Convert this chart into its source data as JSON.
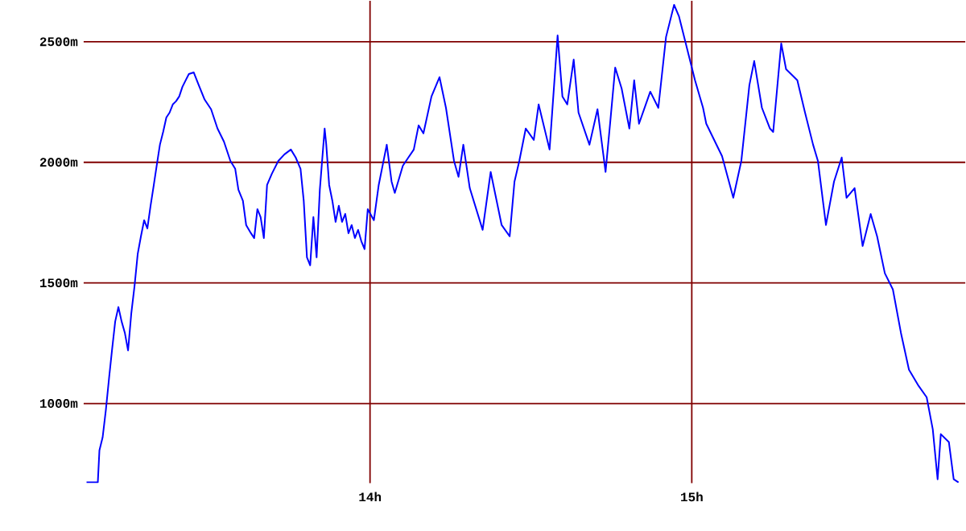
{
  "chart_data": {
    "type": "line",
    "x": [
      13.119,
      13.154,
      13.159,
      13.169,
      13.179,
      13.189,
      13.198,
      13.208,
      13.218,
      13.228,
      13.238,
      13.248,
      13.258,
      13.268,
      13.278,
      13.288,
      13.298,
      13.308,
      13.318,
      13.328,
      13.337,
      13.347,
      13.357,
      13.367,
      13.377,
      13.387,
      13.397,
      13.407,
      13.417,
      13.427,
      13.437,
      13.452,
      13.466,
      13.486,
      13.506,
      13.526,
      13.546,
      13.566,
      13.581,
      13.591,
      13.605,
      13.615,
      13.63,
      13.64,
      13.65,
      13.66,
      13.67,
      13.68,
      13.695,
      13.715,
      13.734,
      13.754,
      13.769,
      13.784,
      13.794,
      13.804,
      13.814,
      13.824,
      13.834,
      13.844,
      13.859,
      13.864,
      13.873,
      13.883,
      13.893,
      13.903,
      13.913,
      13.923,
      13.933,
      13.943,
      13.953,
      13.963,
      13.973,
      13.983,
      13.993,
      14.012,
      14.027,
      14.052,
      14.067,
      14.077,
      14.102,
      14.136,
      14.151,
      14.166,
      14.191,
      14.216,
      14.236,
      14.261,
      14.275,
      14.29,
      14.31,
      14.35,
      14.375,
      14.409,
      14.434,
      14.449,
      14.464,
      14.484,
      14.509,
      14.524,
      14.558,
      14.583,
      14.598,
      14.613,
      14.633,
      14.648,
      14.682,
      14.707,
      14.732,
      14.747,
      14.762,
      14.782,
      14.806,
      14.821,
      14.836,
      14.871,
      14.896,
      14.92,
      14.945,
      14.96,
      14.985,
      15.01,
      15.035,
      15.045,
      15.094,
      15.129,
      15.154,
      15.179,
      15.194,
      15.218,
      15.243,
      15.253,
      15.278,
      15.293,
      15.328,
      15.352,
      15.377,
      15.392,
      15.417,
      15.442,
      15.466,
      15.481,
      15.506,
      15.531,
      15.556,
      15.576,
      15.6,
      15.625,
      15.65,
      15.675,
      15.705,
      15.73,
      15.749,
      15.764,
      15.774,
      15.799,
      15.814,
      15.829
    ],
    "series": [
      {
        "color": "#0000ff",
        "values": [
          673,
          673,
          806,
          860,
          973,
          1106,
          1220,
          1340,
          1400,
          1340,
          1293,
          1220,
          1373,
          1486,
          1620,
          1693,
          1760,
          1726,
          1820,
          1906,
          1986,
          2073,
          2126,
          2186,
          2206,
          2240,
          2253,
          2273,
          2313,
          2340,
          2366,
          2373,
          2326,
          2260,
          2220,
          2140,
          2086,
          2006,
          1973,
          1886,
          1840,
          1740,
          1706,
          1686,
          1806,
          1773,
          1686,
          1906,
          1953,
          2006,
          2033,
          2053,
          2020,
          1973,
          1840,
          1606,
          1573,
          1773,
          1606,
          1886,
          2140,
          2073,
          1906,
          1840,
          1753,
          1820,
          1753,
          1786,
          1706,
          1740,
          1686,
          1720,
          1673,
          1640,
          1806,
          1760,
          1906,
          2073,
          1920,
          1873,
          1986,
          2053,
          2153,
          2120,
          2273,
          2353,
          2226,
          2006,
          1940,
          2073,
          1893,
          1720,
          1960,
          1740,
          1693,
          1920,
          2006,
          2140,
          2093,
          2240,
          2053,
          2526,
          2273,
          2240,
          2426,
          2206,
          2073,
          2220,
          1960,
          2173,
          2393,
          2306,
          2140,
          2340,
          2160,
          2293,
          2226,
          2520,
          2653,
          2606,
          2473,
          2340,
          2226,
          2160,
          2026,
          1853,
          2006,
          2320,
          2420,
          2226,
          2140,
          2126,
          2493,
          2386,
          2340,
          2206,
          2073,
          2006,
          1740,
          1920,
          2020,
          1853,
          1893,
          1653,
          1786,
          1693,
          1540,
          1473,
          1293,
          1140,
          1073,
          1026,
          893,
          686,
          873,
          840,
          686,
          673
        ]
      }
    ],
    "xlim": [
      13.11,
      15.85
    ],
    "ylim": [
      670,
      2670
    ],
    "xticks": [
      {
        "value": 14,
        "label": "14h"
      },
      {
        "value": 15,
        "label": "15h"
      }
    ],
    "yticks": [
      {
        "value": 1000,
        "label": "1000m"
      },
      {
        "value": 1500,
        "label": "1500m"
      },
      {
        "value": 2000,
        "label": "2000m"
      },
      {
        "value": 2500,
        "label": "2500m"
      }
    ],
    "grid": true,
    "marker": "none",
    "line_style": "solid"
  }
}
